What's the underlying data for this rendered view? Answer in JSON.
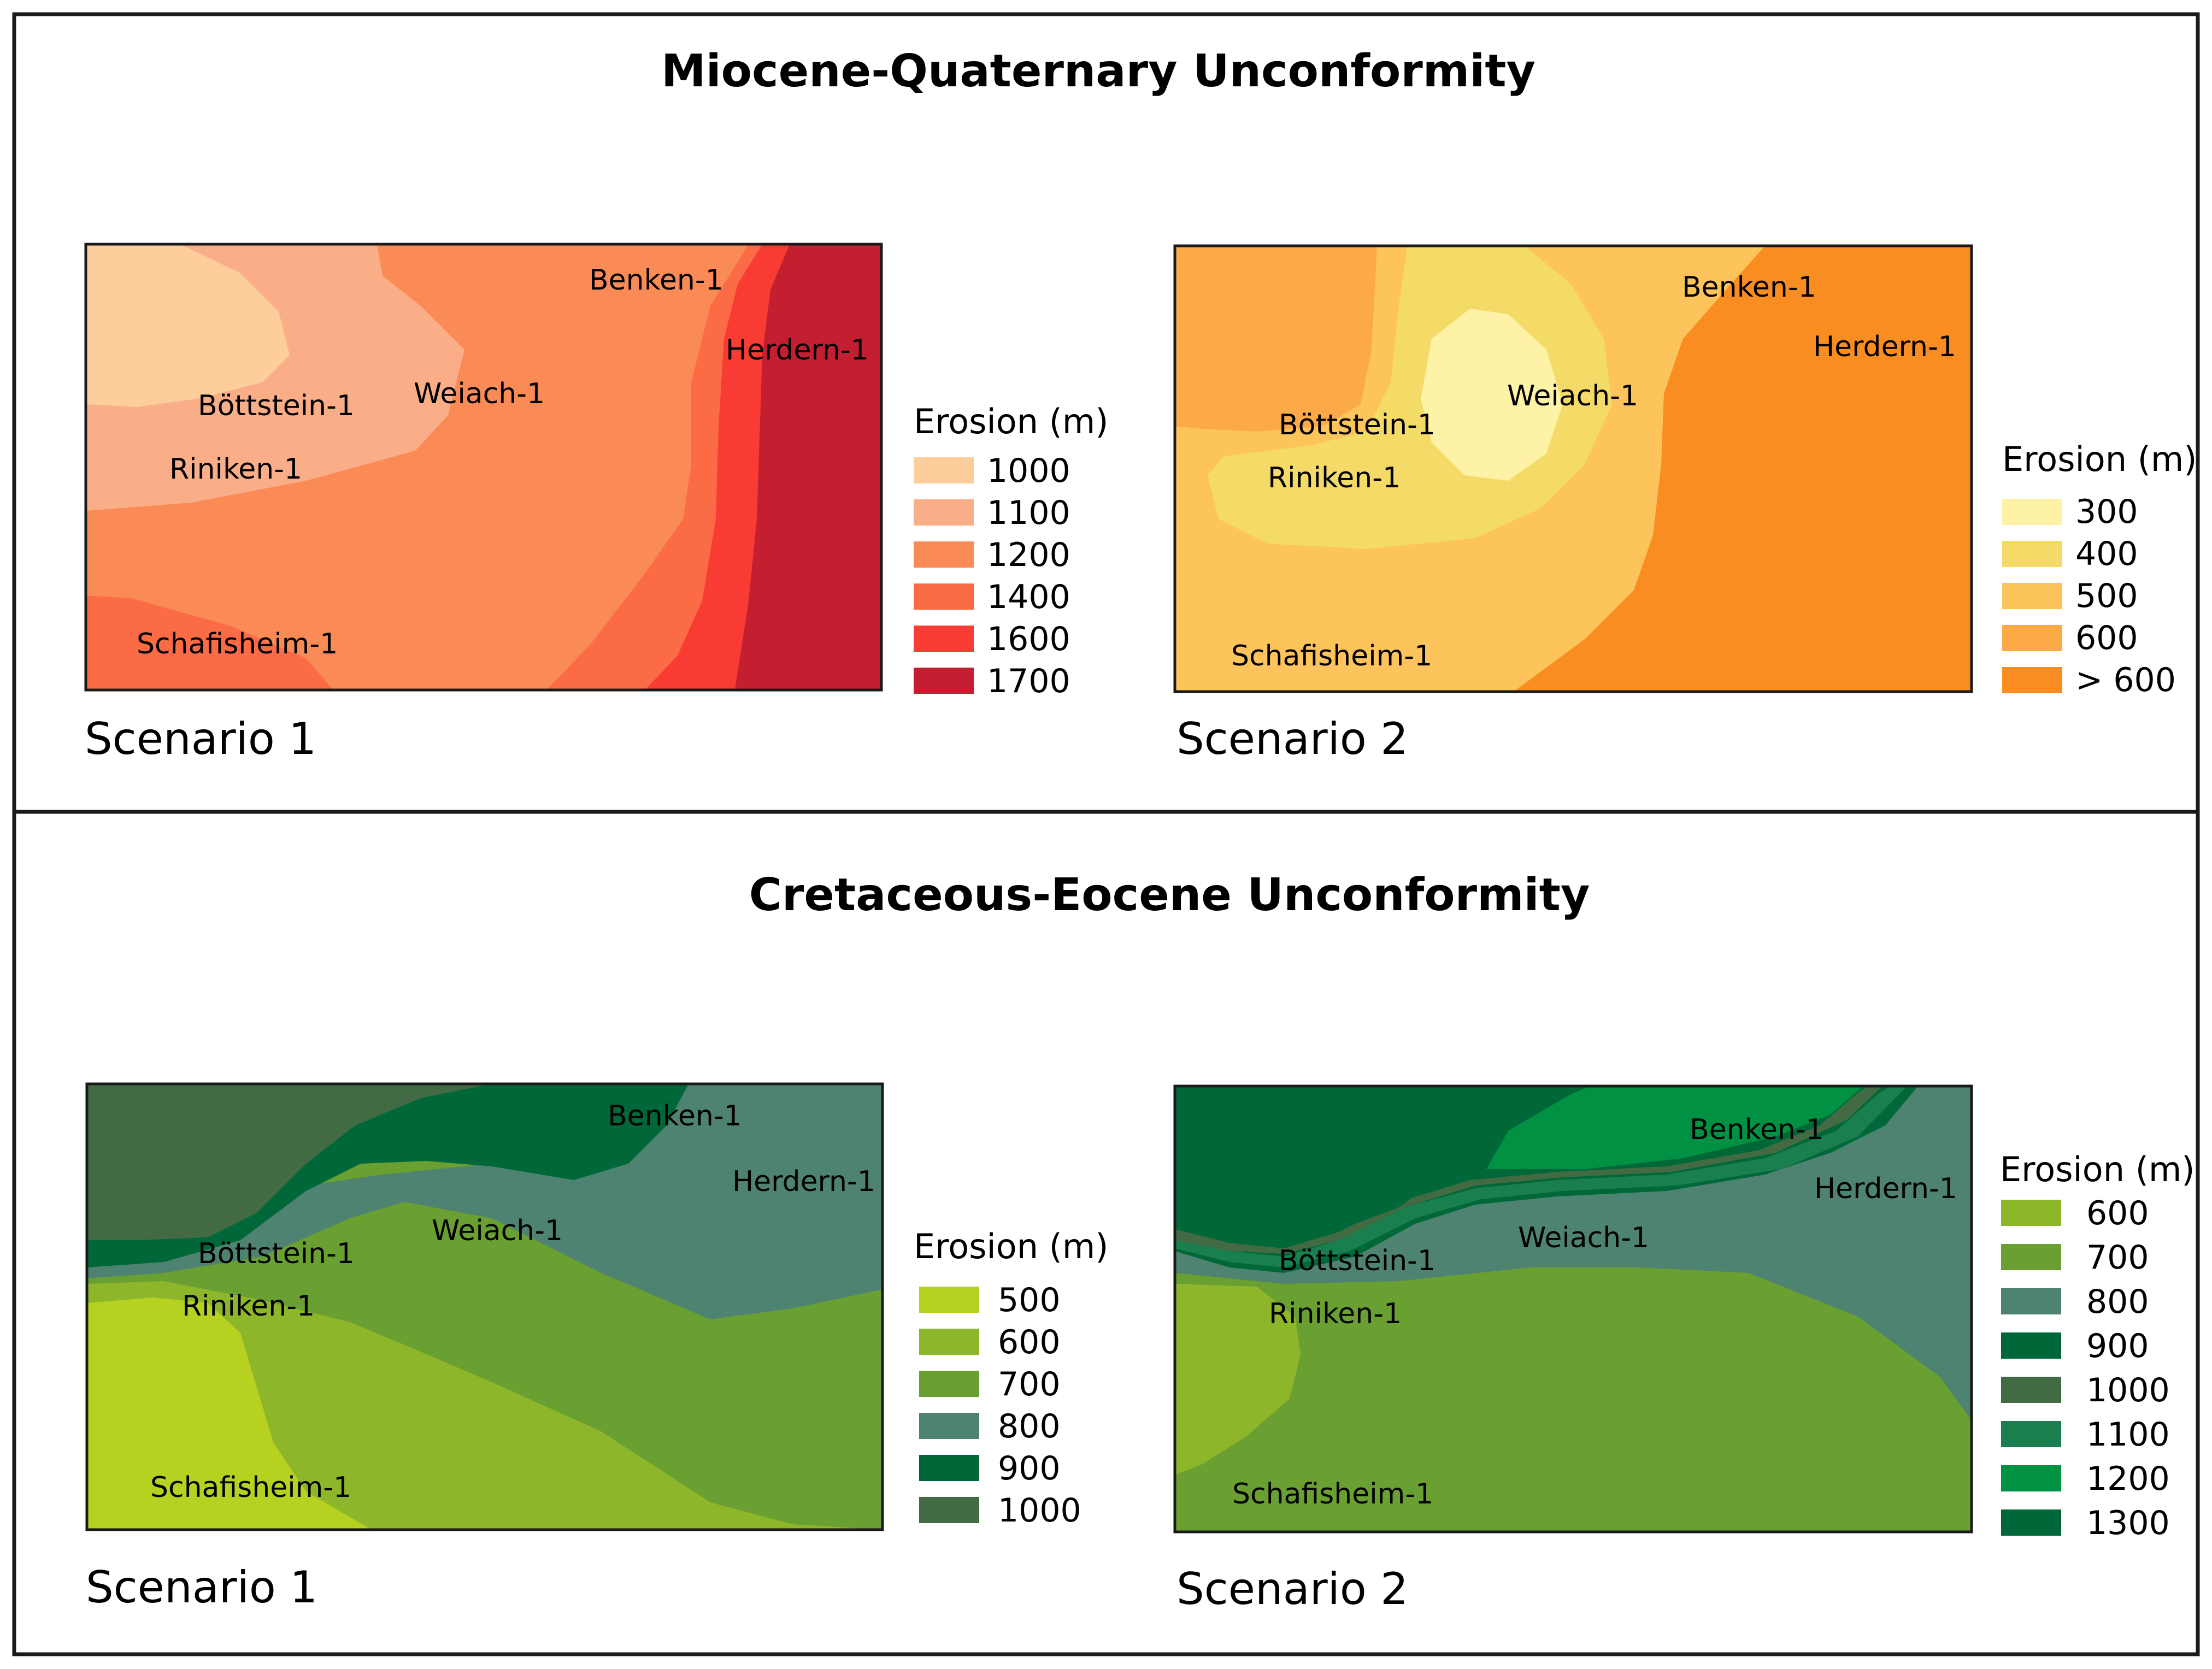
{
  "colors": {
    "mq1": [
      "#fdcd9c",
      "#f9ae87",
      "#fb8b56",
      "#fb6b45",
      "#f83b33",
      "#c41f30"
    ],
    "mq2": [
      "#fdf2a5",
      "#f4da66",
      "#fdc45c",
      "#fcaa48",
      "#f98d22"
    ],
    "ce1": [
      "#b6d11f",
      "#8db62b",
      "#6a9f31",
      "#4d8370",
      "#006838",
      "#436b43"
    ],
    "ce2": [
      "#8db62b",
      "#6a9f31",
      "#4d8370",
      "#006838",
      "#436b43",
      "#1a7f4e",
      "#009242",
      "#006838"
    ],
    "frame": "#1a1a1a"
  },
  "panels": [
    {
      "title": "Miocene-Quaternary Unconformity",
      "scenarios": [
        {
          "label": "Scenario 1",
          "wells": [
            "Benken-1",
            "Herdern-1",
            "Böttstein-1",
            "Weiach-1",
            "Riniken-1",
            "Schafisheim-1"
          ],
          "legend": {
            "title": "Erosion (m)",
            "items": [
              "1000",
              "1100",
              "1200",
              "1400",
              "1600",
              "1700"
            ]
          }
        },
        {
          "label": "Scenario 2",
          "wells": [
            "Benken-1",
            "Herdern-1",
            "Weiach-1",
            "Böttstein-1",
            "Riniken-1",
            "Schafisheim-1"
          ],
          "legend": {
            "title": "Erosion (m)",
            "items": [
              "300",
              "400",
              "500",
              "600",
              "> 600"
            ]
          }
        }
      ]
    },
    {
      "title": "Cretaceous-Eocene Unconformity",
      "scenarios": [
        {
          "label": "Scenario 1",
          "wells": [
            "Benken-1",
            "Herdern-1",
            "Weiach-1",
            "Böttstein-1",
            "Riniken-1",
            "Schafisheim-1"
          ],
          "legend": {
            "title": "Erosion (m)",
            "items": [
              "500",
              "600",
              "700",
              "800",
              "900",
              "1000"
            ]
          }
        },
        {
          "label": "Scenario 2",
          "wells": [
            "Benken-1",
            "Herdern-1",
            "Weiach-1",
            "Böttstein-1",
            "Riniken-1",
            "Schafisheim-1"
          ],
          "legend": {
            "title": "Erosion (m)",
            "items": [
              "600",
              "700",
              "800",
              "900",
              "1000",
              "1100",
              "1200",
              "1300"
            ]
          }
        }
      ]
    }
  ]
}
